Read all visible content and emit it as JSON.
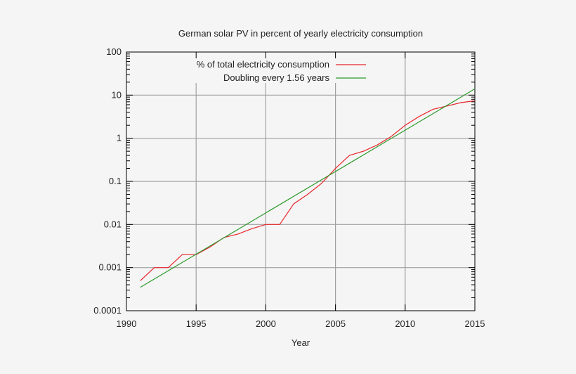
{
  "chart_data": {
    "type": "line",
    "title": "German solar PV in percent of yearly electricity consumption",
    "xlabel": "Year",
    "ylabel": "",
    "xlim": [
      1990,
      2015
    ],
    "ylim": [
      0.0001,
      100
    ],
    "yscale": "log",
    "grid": true,
    "legend_placement": "top-left",
    "xticks": [
      "1990",
      "1995",
      "2000",
      "2005",
      "2010",
      "2015"
    ],
    "yticks": [
      "0.0001",
      "0.001",
      "0.01",
      "0.1",
      "1",
      "10",
      "100"
    ],
    "series": [
      {
        "name": "% of total electricity consumption",
        "color": "#e8262b",
        "x": [
          1991,
          1992,
          1993,
          1994,
          1995,
          1996,
          1997,
          1998,
          1999,
          2000,
          2001,
          2002,
          2003,
          2004,
          2005,
          2006,
          2007,
          2008,
          2009,
          2010,
          2011,
          2012,
          2013,
          2014,
          2015
        ],
        "y": [
          0.0005,
          0.001,
          0.001,
          0.002,
          0.002,
          0.003,
          0.005,
          0.006,
          0.008,
          0.01,
          0.01,
          0.03,
          0.05,
          0.09,
          0.2,
          0.4,
          0.5,
          0.7,
          1.1,
          2.0,
          3.2,
          4.7,
          5.6,
          6.7,
          7.4
        ]
      },
      {
        "name": "Doubling every 1.56 years",
        "color": "#2e9a2e",
        "x": [
          1991,
          2015
        ],
        "y": [
          0.00035,
          14
        ]
      }
    ]
  }
}
